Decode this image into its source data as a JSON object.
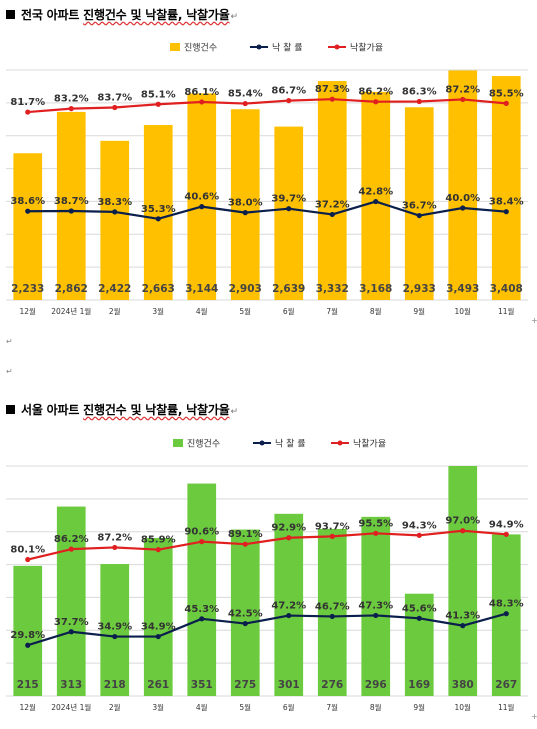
{
  "headings": [
    {
      "prefix": "전국 아파트 ",
      "underlined": "진행건수 및 낙찰률, 낙찰가율",
      "mark": "↵"
    },
    {
      "prefix": "서울 아파트 ",
      "underlined": "진행건수 및 낙찰률, 낙찰가율",
      "mark": "↵"
    }
  ],
  "para_mark": "↵",
  "plus_mark": "+",
  "colors": {
    "bar1": "#FFC000",
    "bar2": "#6CCA3F",
    "rate_line": "#0B1F4D",
    "price_line": "#E02020",
    "grid": "#D9D9D9"
  },
  "chart_data": [
    {
      "type": "bar",
      "categories": [
        "12월",
        "2024년 1월",
        "2월",
        "3월",
        "4월",
        "5월",
        "6월",
        "7월",
        "8월",
        "9월",
        "10월",
        "11월"
      ],
      "legend": [
        "진행건수",
        "낙 찰 률",
        "낙찰가율"
      ],
      "series": [
        {
          "name": "진행건수",
          "type": "bar",
          "values": [
            2233,
            2862,
            2422,
            2663,
            3144,
            2903,
            2639,
            3332,
            3168,
            2933,
            3493,
            3408
          ],
          "labels": [
            "2,233",
            "2,862",
            "2,422",
            "2,663",
            "3,144",
            "2,903",
            "2,639",
            "3,332",
            "3,168",
            "2,933",
            "3,493",
            "3,408"
          ]
        },
        {
          "name": "낙 찰 률",
          "type": "line",
          "values": [
            38.6,
            38.7,
            38.3,
            35.3,
            40.6,
            38.0,
            39.7,
            37.2,
            42.8,
            36.7,
            40.0,
            38.4
          ],
          "labels": [
            "38.6%",
            "38.7%",
            "38.3%",
            "35.3%",
            "40.6%",
            "38.0%",
            "39.7%",
            "37.2%",
            "42.8%",
            "36.7%",
            "40.0%",
            "38.4%"
          ]
        },
        {
          "name": "낙찰가율",
          "type": "line",
          "values": [
            81.7,
            83.2,
            83.7,
            85.1,
            86.1,
            85.4,
            86.7,
            87.3,
            86.2,
            86.3,
            87.2,
            85.5
          ],
          "labels": [
            "81.7%",
            "83.2%",
            "83.7%",
            "85.1%",
            "86.1%",
            "85.4%",
            "86.7%",
            "87.3%",
            "86.2%",
            "86.3%",
            "87.2%",
            "85.5%"
          ]
        }
      ],
      "bar_range": [
        0,
        3500
      ],
      "rate_range": [
        0,
        100
      ],
      "grid": true,
      "legend_position": "top"
    },
    {
      "type": "bar",
      "categories": [
        "12월",
        "2024년 1월",
        "2월",
        "3월",
        "4월",
        "5월",
        "6월",
        "7월",
        "8월",
        "9월",
        "10월",
        "11월"
      ],
      "legend": [
        "진행건수",
        "낙 찰 률",
        "낙찰가율"
      ],
      "series": [
        {
          "name": "진행건수",
          "type": "bar",
          "values": [
            215,
            313,
            218,
            261,
            351,
            275,
            301,
            276,
            296,
            169,
            380,
            267
          ],
          "labels": [
            "215",
            "313",
            "218",
            "261",
            "351",
            "275",
            "301",
            "276",
            "296",
            "169",
            "380",
            "267"
          ]
        },
        {
          "name": "낙 찰 률",
          "type": "line",
          "values": [
            29.8,
            37.7,
            34.9,
            34.9,
            45.3,
            42.5,
            47.2,
            46.7,
            47.3,
            45.6,
            41.3,
            48.3
          ],
          "labels": [
            "29.8%",
            "37.7%",
            "34.9%",
            "34.9%",
            "45.3%",
            "42.5%",
            "47.2%",
            "46.7%",
            "47.3%",
            "45.6%",
            "41.3%",
            "48.3%"
          ]
        },
        {
          "name": "낙찰가율",
          "type": "line",
          "values": [
            80.1,
            86.2,
            87.2,
            85.9,
            90.6,
            89.1,
            92.9,
            93.7,
            95.5,
            94.3,
            97.0,
            94.9
          ],
          "labels": [
            "80.1%",
            "86.2%",
            "87.2%",
            "85.9%",
            "90.6%",
            "89.1%",
            "92.9%",
            "93.7%",
            "95.5%",
            "94.3%",
            "97.0%",
            "94.9%"
          ]
        }
      ],
      "bar_range": [
        0,
        380
      ],
      "rate_range": [
        0,
        135
      ],
      "grid": true,
      "legend_position": "top"
    }
  ]
}
